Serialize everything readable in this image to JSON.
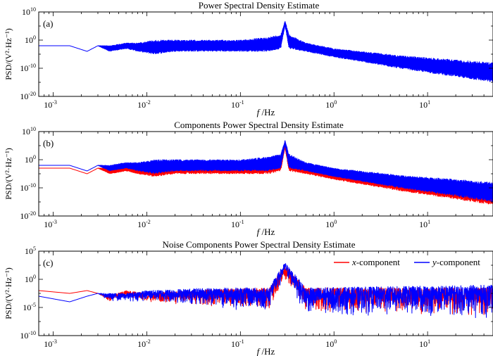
{
  "chart_data": [
    {
      "type": "line",
      "panel": "(a)",
      "title": "Power Spectral Density Estimate",
      "xlabel_italic": "f",
      "xlabel_rest": " /Hz",
      "ylabel": "PSD/(V²·Hz⁻¹)",
      "xscale": "log",
      "xlim": [
        0.0007,
        50
      ],
      "yscale": "log",
      "ylim_exp": [
        -20,
        10
      ],
      "xticks": [
        {
          "base": "10",
          "exp": "-3",
          "value": 0.001
        },
        {
          "base": "10",
          "exp": "-2",
          "value": 0.01
        },
        {
          "base": "10",
          "exp": "-1",
          "value": 0.1
        },
        {
          "base": "10",
          "exp": "0",
          "value": 1
        },
        {
          "base": "10",
          "exp": "1",
          "value": 10
        }
      ],
      "yticks": [
        {
          "base": "10",
          "exp": "10",
          "value_exp": 10
        },
        {
          "base": "10",
          "exp": "0",
          "value_exp": 0
        },
        {
          "base": "10",
          "exp": "-10",
          "value_exp": -10
        },
        {
          "base": "10",
          "exp": "-20",
          "value_exp": -20
        }
      ],
      "peak_hz": 0.3,
      "series": [
        {
          "name": "PSD",
          "color": "#0000ff",
          "style": "mean",
          "x": [
            0.0007,
            0.0015,
            0.0023,
            0.003,
            0.004,
            0.006,
            0.008,
            0.012,
            0.02,
            0.05,
            0.1,
            0.2,
            0.27,
            0.3,
            0.33,
            0.5,
            1,
            5,
            50
          ],
          "y_upper_exp": [
            -2,
            -2,
            -4,
            -2,
            -2,
            -1,
            -1,
            0,
            0,
            0,
            0,
            1,
            2,
            7,
            2,
            -1,
            -3,
            -5.5,
            -8
          ],
          "y_lower_exp": [
            -2,
            -2,
            -4,
            -2,
            -4,
            -3,
            -4,
            -5,
            -4,
            -4,
            -4,
            -4,
            -3,
            5,
            -3,
            -4,
            -6,
            -10,
            -15
          ]
        }
      ]
    },
    {
      "type": "line",
      "panel": "(b)",
      "title": "Components Power Spectral Density Estimate",
      "xlabel_italic": "f",
      "xlabel_rest": " /Hz",
      "ylabel": "PSD/(V²·Hz⁻¹)",
      "xscale": "log",
      "xlim": [
        0.0007,
        50
      ],
      "yscale": "log",
      "ylim_exp": [
        -20,
        10
      ],
      "xticks": [
        {
          "base": "10",
          "exp": "-3",
          "value": 0.001
        },
        {
          "base": "10",
          "exp": "-2",
          "value": 0.01
        },
        {
          "base": "10",
          "exp": "-1",
          "value": 0.1
        },
        {
          "base": "10",
          "exp": "0",
          "value": 1
        },
        {
          "base": "10",
          "exp": "1",
          "value": 10
        }
      ],
      "yticks": [
        {
          "base": "10",
          "exp": "10",
          "value_exp": 10
        },
        {
          "base": "10",
          "exp": "0",
          "value_exp": 0
        },
        {
          "base": "10",
          "exp": "-10",
          "value_exp": -10
        },
        {
          "base": "10",
          "exp": "-20",
          "value_exp": -20
        }
      ],
      "peak_hz": 0.3,
      "series": [
        {
          "name": "x-component",
          "color": "#ff0000",
          "style": "mean",
          "x": [
            0.0007,
            0.0015,
            0.0023,
            0.003,
            0.004,
            0.006,
            0.008,
            0.012,
            0.02,
            0.05,
            0.1,
            0.2,
            0.27,
            0.3,
            0.33,
            0.5,
            1,
            5,
            50
          ],
          "y_upper_exp": [
            -3,
            -3,
            -5,
            -3,
            -3,
            -2,
            -2,
            -1,
            -1,
            -1,
            -1,
            0,
            1,
            6,
            1,
            -2,
            -4,
            -6.5,
            -9
          ],
          "y_lower_exp": [
            -3,
            -3,
            -5,
            -3,
            -5,
            -4,
            -5,
            -6,
            -5,
            -5,
            -5,
            -5,
            -4,
            4,
            -4,
            -5,
            -7,
            -11,
            -16
          ]
        },
        {
          "name": "y-component",
          "color": "#0000ff",
          "style": "mean",
          "x": [
            0.0007,
            0.0015,
            0.0023,
            0.003,
            0.004,
            0.006,
            0.008,
            0.012,
            0.02,
            0.05,
            0.1,
            0.2,
            0.27,
            0.3,
            0.33,
            0.5,
            1,
            5,
            50
          ],
          "y_upper_exp": [
            -2,
            -2,
            -4,
            -2,
            -2,
            -1,
            -1,
            0,
            0,
            0,
            0,
            1,
            2,
            7,
            2,
            -1,
            -3,
            -5.5,
            -8
          ],
          "y_lower_exp": [
            -2,
            -2,
            -4,
            -2,
            -4,
            -3,
            -4,
            -5,
            -4,
            -4,
            -4,
            -4,
            -3,
            5,
            -3,
            -4,
            -6,
            -10,
            -15
          ]
        }
      ]
    },
    {
      "type": "line",
      "panel": "(c)",
      "title": "Noise Components Power Spectral Density Estimate",
      "xlabel_italic": "f",
      "xlabel_rest": " /Hz",
      "ylabel": "PSD/(V²·Hz⁻¹)",
      "xscale": "log",
      "xlim": [
        0.0007,
        50
      ],
      "yscale": "log",
      "ylim_exp": [
        -10,
        5
      ],
      "xticks": [
        {
          "base": "10",
          "exp": "-3",
          "value": 0.001
        },
        {
          "base": "10",
          "exp": "-2",
          "value": 0.01
        },
        {
          "base": "10",
          "exp": "-1",
          "value": 0.1
        },
        {
          "base": "10",
          "exp": "0",
          "value": 1
        },
        {
          "base": "10",
          "exp": "1",
          "value": 10
        }
      ],
      "yticks": [
        {
          "base": "10",
          "exp": "5",
          "value_exp": 5
        },
        {
          "base": "10",
          "exp": "0",
          "value_exp": 0
        },
        {
          "base": "10",
          "exp": "-5",
          "value_exp": -5
        },
        {
          "base": "10",
          "exp": "-10",
          "value_exp": -10
        }
      ],
      "peak_hz": 0.3,
      "legend": {
        "position": "top-right"
      },
      "series": [
        {
          "name": "x-component",
          "legend_italic": "x",
          "legend_rest": "-component",
          "color": "#ff0000",
          "style": "noise",
          "x": [
            0.0007,
            0.0015,
            0.0023,
            0.003,
            0.004,
            0.006,
            0.01,
            0.05,
            0.2,
            0.3,
            0.5,
            50
          ],
          "y_upper_exp": [
            -2,
            -2.5,
            -2,
            -2.5,
            -3,
            -2,
            -2.5,
            -1.8,
            -1.5,
            2.5,
            -1.5,
            -1.5
          ],
          "y_lower_exp": [
            -2,
            -2.5,
            -2,
            -2.5,
            -4,
            -3,
            -4,
            -5,
            -5.5,
            0,
            -6,
            -6.5
          ]
        },
        {
          "name": "y-component",
          "legend_italic": "y",
          "legend_rest": "-component",
          "color": "#0000ff",
          "style": "noise",
          "x": [
            0.0007,
            0.0015,
            0.0023,
            0.003,
            0.004,
            0.006,
            0.01,
            0.05,
            0.2,
            0.3,
            0.5,
            50
          ],
          "y_upper_exp": [
            -3,
            -4,
            -3,
            -2.5,
            -2.5,
            -2.5,
            -2,
            -1.5,
            -1.5,
            3,
            -1.5,
            -1
          ],
          "y_lower_exp": [
            -3,
            -4,
            -3,
            -2.5,
            -4,
            -4,
            -4,
            -5,
            -6,
            0.5,
            -6.5,
            -7
          ]
        }
      ]
    }
  ]
}
